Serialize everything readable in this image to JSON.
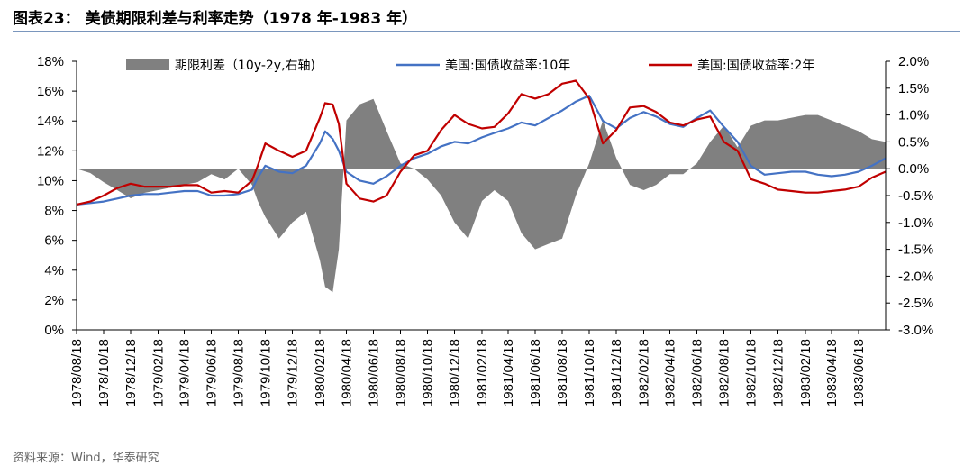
{
  "header": {
    "title": "图表23：  美债期限利差与利率走势（1978 年-1983 年）"
  },
  "footer": {
    "source": "资料来源：Wind，华泰研究"
  },
  "chart_data": {
    "type": "line",
    "title": "",
    "x_ticks": [
      "1978/08/18",
      "1978/10/18",
      "1978/12/18",
      "1979/02/18",
      "1979/04/18",
      "1979/06/18",
      "1979/08/18",
      "1979/10/18",
      "1979/12/18",
      "1980/02/18",
      "1980/04/18",
      "1980/06/18",
      "1980/08/18",
      "1980/10/18",
      "1980/12/18",
      "1981/02/18",
      "1981/04/18",
      "1981/06/18",
      "1981/08/18",
      "1981/10/18",
      "1981/12/18",
      "1982/02/18",
      "1982/04/18",
      "1982/06/18",
      "1982/08/18",
      "1982/10/18",
      "1982/12/18",
      "1983/02/18",
      "1983/04/18",
      "1983/06/18"
    ],
    "x_range": [
      "1978/08/18",
      "1983/08/18"
    ],
    "y_left": {
      "ticks": [
        "18%",
        "16%",
        "14%",
        "12%",
        "10%",
        "8%",
        "6%",
        "4%",
        "2%",
        "0%"
      ],
      "range": [
        0,
        18
      ]
    },
    "y_right": {
      "ticks": [
        "2.0%",
        "1.5%",
        "1.0%",
        "0.5%",
        "0.0%",
        "-0.5%",
        "-1.0%",
        "-1.5%",
        "-2.0%",
        "-2.5%",
        "-3.0%"
      ],
      "range": [
        -3.0,
        2.0
      ]
    },
    "legend": {
      "placement": "top",
      "items": [
        "期限利差（10y-2y,右轴)",
        "美国:国债收益率:10年",
        "美国:国债收益率:2年"
      ]
    },
    "series": [
      {
        "name": "期限利差（10y-2y,右轴)",
        "type": "area",
        "axis": "right",
        "color": "#808080",
        "x": [
          "1978/08/18",
          "1978/09/18",
          "1978/10/18",
          "1978/11/18",
          "1978/12/18",
          "1979/01/18",
          "1979/02/18",
          "1979/03/18",
          "1979/04/18",
          "1979/05/18",
          "1979/06/18",
          "1979/07/18",
          "1979/08/18",
          "1979/09/18",
          "1979/10/01",
          "1979/10/18",
          "1979/11/18",
          "1979/12/18",
          "1980/01/18",
          "1980/02/18",
          "1980/03/01",
          "1980/03/18",
          "1980/04/01",
          "1980/04/18",
          "1980/05/18",
          "1980/06/18",
          "1980/07/18",
          "1980/08/18",
          "1980/09/18",
          "1980/10/18",
          "1980/11/18",
          "1980/12/18",
          "1981/01/18",
          "1981/02/18",
          "1981/03/18",
          "1981/04/18",
          "1981/05/18",
          "1981/06/18",
          "1981/07/18",
          "1981/08/18",
          "1981/09/18",
          "1981/10/18",
          "1981/11/18",
          "1981/12/18",
          "1982/01/18",
          "1982/02/18",
          "1982/03/18",
          "1982/04/18",
          "1982/05/18",
          "1982/06/18",
          "1982/07/18",
          "1982/08/18",
          "1982/09/18",
          "1982/10/18",
          "1982/11/18",
          "1982/12/18",
          "1983/01/18",
          "1983/02/18",
          "1983/03/18",
          "1983/04/18",
          "1983/05/18",
          "1983/06/18",
          "1983/07/18",
          "1983/08/18"
        ],
        "values": [
          0.0,
          -0.08,
          -0.25,
          -0.4,
          -0.55,
          -0.45,
          -0.4,
          -0.35,
          -0.3,
          -0.25,
          -0.1,
          -0.2,
          0.0,
          -0.3,
          -0.6,
          -0.9,
          -1.3,
          -1.0,
          -0.8,
          -1.7,
          -2.2,
          -2.3,
          -1.5,
          0.9,
          1.2,
          1.3,
          0.7,
          0.1,
          0.0,
          -0.2,
          -0.5,
          -1.0,
          -1.3,
          -0.6,
          -0.4,
          -0.6,
          -1.2,
          -1.5,
          -1.4,
          -1.3,
          -0.5,
          0.1,
          0.9,
          0.2,
          -0.3,
          -0.4,
          -0.3,
          -0.1,
          -0.1,
          0.1,
          0.5,
          0.8,
          0.4,
          0.8,
          0.9,
          0.9,
          0.95,
          1.0,
          1.0,
          0.9,
          0.8,
          0.7,
          0.55,
          0.5
        ]
      },
      {
        "name": "美国:国债收益率:10年",
        "type": "line",
        "axis": "left",
        "color": "#4472c4",
        "x": [
          "1978/08/18",
          "1978/09/18",
          "1978/10/18",
          "1978/11/18",
          "1978/12/18",
          "1979/01/18",
          "1979/02/18",
          "1979/03/18",
          "1979/04/18",
          "1979/05/18",
          "1979/06/18",
          "1979/07/18",
          "1979/08/18",
          "1979/09/18",
          "1979/10/01",
          "1979/10/18",
          "1979/11/18",
          "1979/12/18",
          "1980/01/18",
          "1980/02/18",
          "1980/03/01",
          "1980/03/18",
          "1980/04/01",
          "1980/04/18",
          "1980/05/18",
          "1980/06/18",
          "1980/07/18",
          "1980/08/18",
          "1980/09/18",
          "1980/10/18",
          "1980/11/18",
          "1980/12/18",
          "1981/01/18",
          "1981/02/18",
          "1981/03/18",
          "1981/04/18",
          "1981/05/18",
          "1981/06/18",
          "1981/07/18",
          "1981/08/18",
          "1981/09/18",
          "1981/10/18",
          "1981/11/18",
          "1981/12/18",
          "1982/01/18",
          "1982/02/18",
          "1982/03/18",
          "1982/04/18",
          "1982/05/18",
          "1982/06/18",
          "1982/07/18",
          "1982/08/18",
          "1982/09/18",
          "1982/10/18",
          "1982/11/18",
          "1982/12/18",
          "1983/01/18",
          "1983/02/18",
          "1983/03/18",
          "1983/04/18",
          "1983/05/18",
          "1983/06/18",
          "1983/07/18",
          "1983/08/18"
        ],
        "values": [
          8.4,
          8.5,
          8.6,
          8.8,
          9.0,
          9.1,
          9.1,
          9.2,
          9.3,
          9.3,
          9.0,
          9.0,
          9.1,
          9.4,
          10.2,
          11.0,
          10.6,
          10.5,
          11.0,
          12.5,
          13.3,
          12.8,
          12.0,
          10.6,
          10.0,
          9.8,
          10.3,
          11.0,
          11.5,
          11.8,
          12.3,
          12.6,
          12.5,
          12.9,
          13.2,
          13.5,
          13.9,
          13.7,
          14.2,
          14.7,
          15.3,
          15.7,
          14.0,
          13.5,
          14.2,
          14.6,
          14.3,
          13.8,
          13.6,
          14.2,
          14.7,
          13.6,
          12.6,
          11.0,
          10.4,
          10.5,
          10.6,
          10.6,
          10.4,
          10.3,
          10.4,
          10.6,
          11.0,
          11.5
        ]
      },
      {
        "name": "美国:国债收益率:2年",
        "type": "line",
        "axis": "left",
        "color": "#c00000",
        "x": [
          "1978/08/18",
          "1978/09/18",
          "1978/10/18",
          "1978/11/18",
          "1978/12/18",
          "1979/01/18",
          "1979/02/18",
          "1979/03/18",
          "1979/04/18",
          "1979/05/18",
          "1979/06/18",
          "1979/07/18",
          "1979/08/18",
          "1979/09/18",
          "1979/10/01",
          "1979/10/18",
          "1979/11/18",
          "1979/12/18",
          "1980/01/18",
          "1980/02/18",
          "1980/03/01",
          "1980/03/18",
          "1980/04/01",
          "1980/04/18",
          "1980/05/18",
          "1980/06/18",
          "1980/07/18",
          "1980/08/18",
          "1980/09/18",
          "1980/10/18",
          "1980/11/18",
          "1980/12/18",
          "1981/01/18",
          "1981/02/18",
          "1981/03/18",
          "1981/04/18",
          "1981/05/18",
          "1981/06/18",
          "1981/07/18",
          "1981/08/18",
          "1981/09/18",
          "1981/10/18",
          "1981/11/18",
          "1981/12/18",
          "1982/01/18",
          "1982/02/18",
          "1982/03/18",
          "1982/04/18",
          "1982/05/18",
          "1982/06/18",
          "1982/07/18",
          "1982/08/18",
          "1982/09/18",
          "1982/10/18",
          "1982/11/18",
          "1982/12/18",
          "1983/01/18",
          "1983/02/18",
          "1983/03/18",
          "1983/04/18",
          "1983/05/18",
          "1983/06/18",
          "1983/07/18",
          "1983/08/18"
        ],
        "values": [
          8.4,
          8.6,
          9.0,
          9.5,
          9.8,
          9.6,
          9.6,
          9.6,
          9.7,
          9.7,
          9.2,
          9.3,
          9.2,
          10.0,
          11.0,
          12.5,
          12.0,
          11.6,
          12.0,
          14.2,
          15.2,
          15.1,
          13.8,
          9.8,
          8.8,
          8.6,
          9.0,
          10.6,
          11.7,
          12.0,
          13.4,
          14.4,
          13.8,
          13.5,
          13.6,
          14.5,
          15.8,
          15.5,
          15.8,
          16.5,
          16.7,
          15.5,
          12.5,
          13.4,
          14.9,
          15.0,
          14.6,
          13.9,
          13.7,
          14.1,
          14.3,
          12.6,
          12.0,
          10.1,
          9.8,
          9.4,
          9.3,
          9.2,
          9.2,
          9.3,
          9.4,
          9.6,
          10.2,
          10.6
        ]
      }
    ]
  }
}
